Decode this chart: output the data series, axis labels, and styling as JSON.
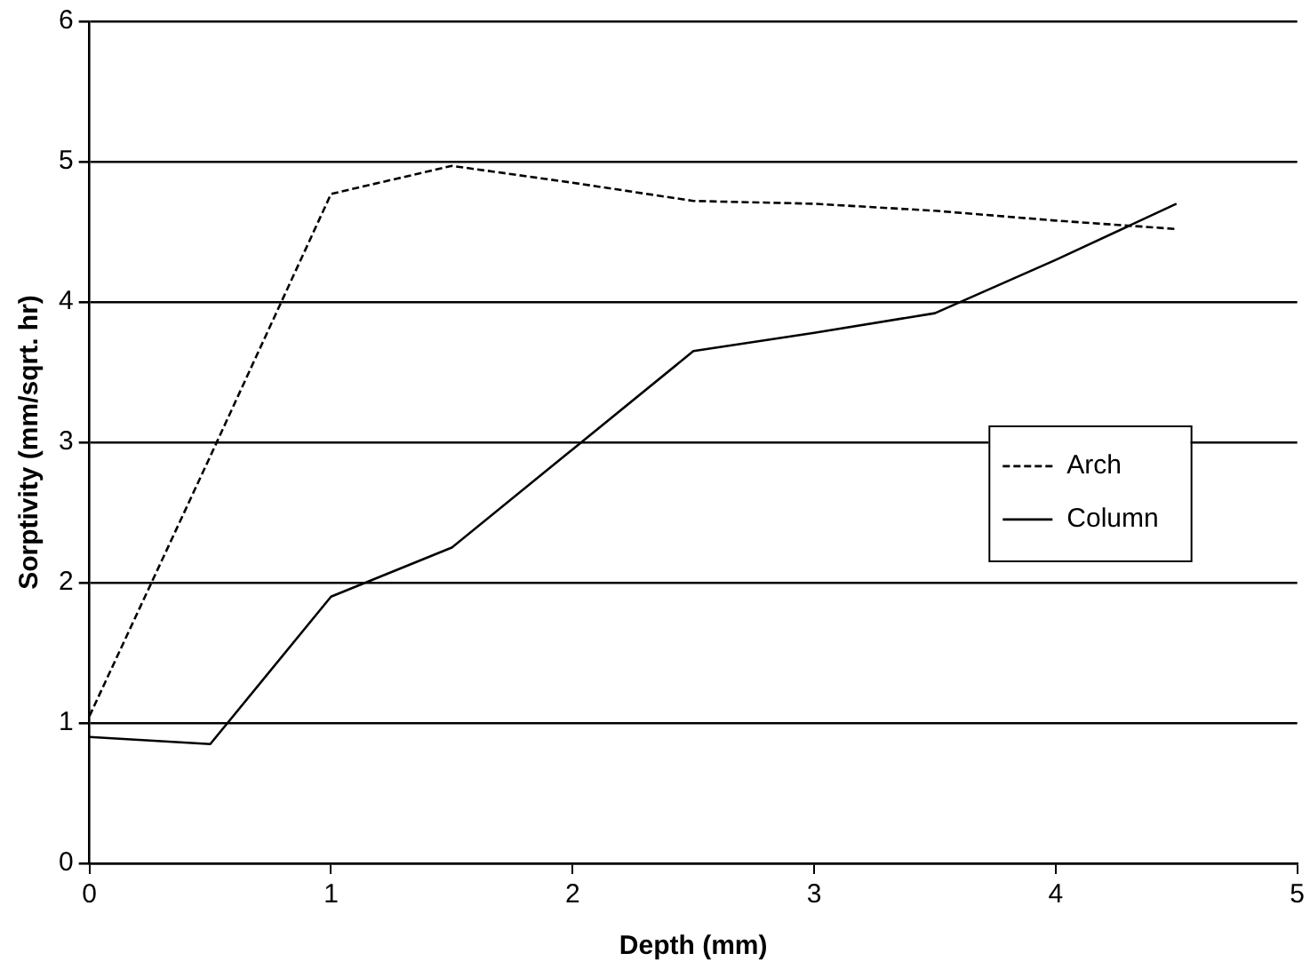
{
  "chart_data": {
    "type": "line",
    "xlabel": "Depth (mm)",
    "ylabel": "Sorptivity (mm/sqrt. hr)",
    "x": [
      0,
      0.5,
      1,
      1.5,
      2,
      2.5,
      3,
      3.5,
      4,
      4.5
    ],
    "series": [
      {
        "name": "Arch",
        "color": "#000000",
        "line_style": "dashed",
        "values": [
          1.05,
          2.9,
          4.77,
          4.97,
          4.85,
          4.72,
          4.7,
          4.65,
          4.58,
          4.52
        ]
      },
      {
        "name": "Column",
        "color": "#000000",
        "line_style": "solid",
        "values": [
          0.9,
          0.85,
          1.9,
          2.25,
          2.95,
          3.65,
          3.78,
          3.92,
          4.3,
          4.7
        ]
      }
    ],
    "xlim": [
      0,
      5
    ],
    "xticks": [
      0,
      1,
      2,
      3,
      4,
      5
    ],
    "ylim": [
      0,
      6
    ],
    "yticks": [
      0,
      1,
      2,
      3,
      4,
      5,
      6
    ],
    "grid": "y",
    "legend": "right",
    "marker": "none"
  }
}
